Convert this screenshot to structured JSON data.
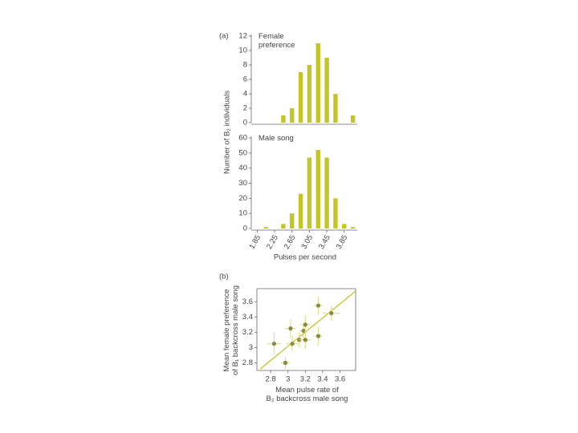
{
  "chart_data": [
    {
      "type": "bar",
      "panel_label": "(a)",
      "annotation": [
        "Female",
        "preference"
      ],
      "ylabel": "Number of B₂ individuals",
      "x": [
        2.45,
        2.65,
        2.85,
        3.05,
        3.25,
        3.45,
        3.65,
        4.05
      ],
      "values": [
        1,
        2,
        7,
        8,
        11,
        9,
        4,
        1
      ],
      "color": "#c3c52b",
      "xlim": [
        1.75,
        4.15
      ],
      "ylim": [
        0,
        12
      ],
      "yticks": [
        0,
        2,
        4,
        6,
        8,
        10,
        12
      ]
    },
    {
      "type": "bar",
      "annotation": [
        "Male song"
      ],
      "xlabel": "Pulses per second",
      "x": [
        2.05,
        2.45,
        2.65,
        2.85,
        3.05,
        3.25,
        3.45,
        3.65,
        3.85,
        4.05
      ],
      "values": [
        1,
        3,
        10,
        23,
        47,
        52,
        47,
        20,
        3,
        1
      ],
      "color": "#c3c52b",
      "xlim": [
        1.75,
        4.15
      ],
      "ylim": [
        0,
        60
      ],
      "yticks": [
        0,
        10,
        20,
        30,
        40,
        50,
        60
      ],
      "xticks": [
        1.85,
        2.25,
        2.65,
        3.05,
        3.45,
        3.85
      ]
    },
    {
      "type": "scatter",
      "panel_label": "(b)",
      "ylabel": [
        "Mean female preference",
        "of B₁ backcross male song"
      ],
      "xlabel": [
        "Mean pulse rate of",
        "B₂ backcross male song"
      ],
      "x": [
        2.84,
        2.97,
        3.03,
        3.05,
        3.13,
        3.18,
        3.2,
        3.2,
        3.35,
        3.35,
        3.5
      ],
      "y": [
        3.05,
        2.8,
        3.25,
        3.05,
        3.1,
        3.22,
        3.3,
        3.1,
        3.55,
        3.15,
        3.45
      ],
      "xerr": [
        0.08,
        0.05,
        0.06,
        0.07,
        0.06,
        0.05,
        0.06,
        0.07,
        0.05,
        0.05,
        0.1
      ],
      "yerr": [
        0.15,
        0.08,
        0.12,
        0.1,
        0.1,
        0.1,
        0.12,
        0.12,
        0.12,
        0.12,
        0.1
      ],
      "color": "#8c8b3c",
      "error_color": "#dedd95",
      "fit_line": {
        "x": [
          2.68,
          3.78
        ],
        "y": [
          2.72,
          3.74
        ],
        "color": "#c3c52b"
      },
      "xlim": [
        2.66,
        3.78
      ],
      "ylim": [
        2.7,
        3.75
      ],
      "xticks": [
        2.8,
        3.0,
        3.2,
        3.4,
        3.6
      ],
      "yticks": [
        2.8,
        3.0,
        3.2,
        3.4,
        3.6
      ]
    }
  ]
}
